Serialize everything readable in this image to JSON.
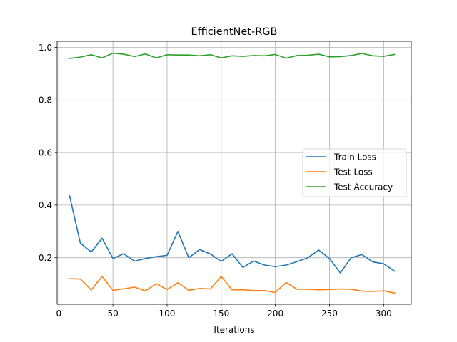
{
  "chart_data": {
    "type": "line",
    "title": "EfficientNet-RGB",
    "xlabel": "Iterations",
    "ylabel": "",
    "xlim": [
      -1.5,
      325.5
    ],
    "ylim": [
      0.023,
      1.023
    ],
    "grid": true,
    "legend_position": "center-right",
    "x_ticks": [
      0,
      50,
      100,
      150,
      200,
      250,
      300
    ],
    "y_ticks": [
      0.2,
      0.4,
      0.6,
      0.8,
      1.0
    ],
    "x_tick_labels": [
      "0",
      "50",
      "100",
      "150",
      "200",
      "250",
      "300"
    ],
    "y_tick_labels": [
      "0.2",
      "0.4",
      "0.6",
      "0.8",
      "1.0"
    ],
    "x": [
      10,
      20,
      30,
      40,
      50,
      60,
      70,
      80,
      90,
      100,
      110,
      120,
      130,
      140,
      150,
      160,
      170,
      180,
      190,
      200,
      210,
      220,
      230,
      240,
      250,
      260,
      270,
      280,
      290,
      300,
      310
    ],
    "series": [
      {
        "name": "Train Loss",
        "color": "#1f77b4",
        "values": [
          0.435,
          0.255,
          0.222,
          0.274,
          0.197,
          0.215,
          0.187,
          0.197,
          0.204,
          0.209,
          0.3,
          0.2,
          0.231,
          0.214,
          0.186,
          0.215,
          0.163,
          0.187,
          0.172,
          0.166,
          0.172,
          0.185,
          0.2,
          0.229,
          0.197,
          0.142,
          0.2,
          0.212,
          0.184,
          0.177,
          0.149
        ]
      },
      {
        "name": "Test Loss",
        "color": "#ff7f0e",
        "values": [
          0.12,
          0.119,
          0.077,
          0.129,
          0.076,
          0.082,
          0.088,
          0.074,
          0.101,
          0.079,
          0.105,
          0.076,
          0.083,
          0.081,
          0.129,
          0.078,
          0.078,
          0.075,
          0.075,
          0.068,
          0.106,
          0.08,
          0.08,
          0.078,
          0.079,
          0.081,
          0.08,
          0.073,
          0.072,
          0.074,
          0.066
        ]
      },
      {
        "name": "Test Accuracy",
        "color": "#2ca02c",
        "values": [
          0.958,
          0.963,
          0.972,
          0.96,
          0.978,
          0.974,
          0.965,
          0.975,
          0.96,
          0.972,
          0.971,
          0.971,
          0.968,
          0.972,
          0.96,
          0.968,
          0.966,
          0.969,
          0.968,
          0.973,
          0.959,
          0.969,
          0.97,
          0.974,
          0.964,
          0.965,
          0.969,
          0.977,
          0.968,
          0.966,
          0.973
        ]
      }
    ]
  }
}
